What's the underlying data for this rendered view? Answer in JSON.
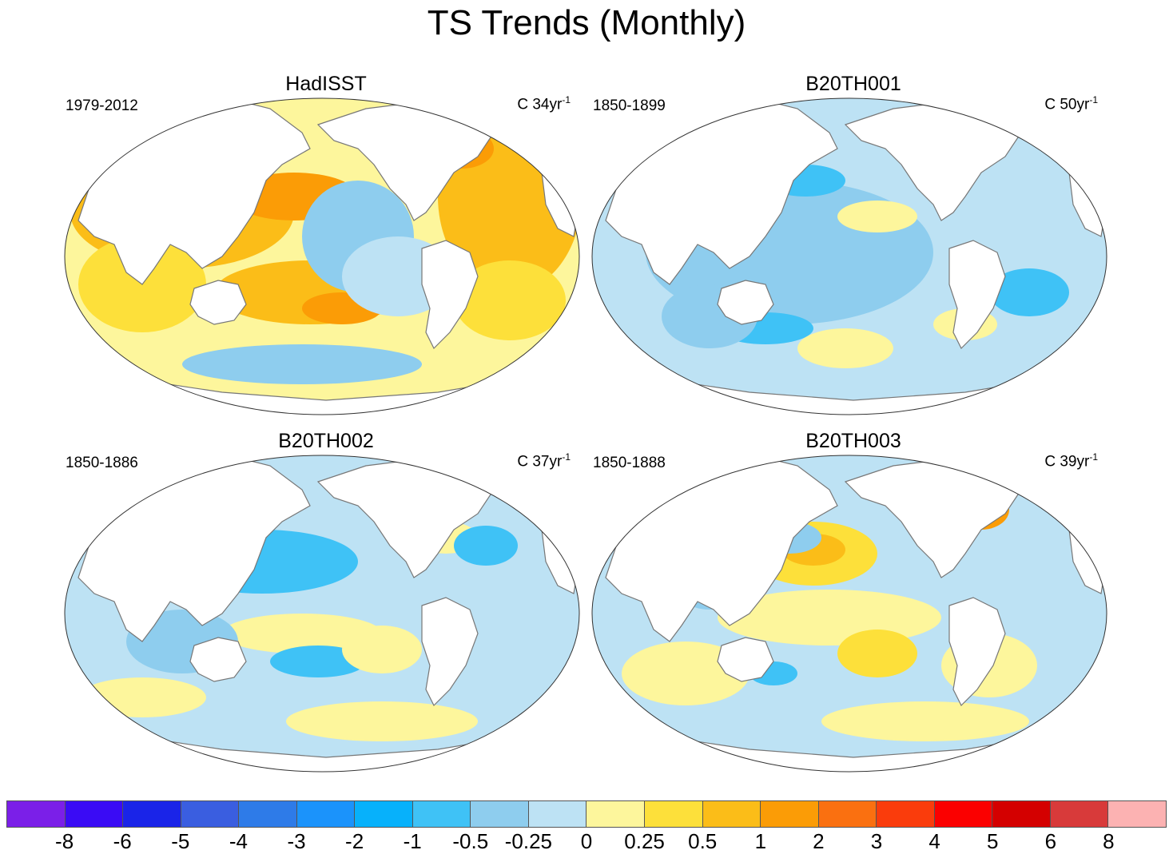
{
  "title": "TS Trends (Monthly)",
  "panels": [
    {
      "name": "HadISST",
      "period": "1979-2012",
      "units_prefix": "C 34yr",
      "units_exp": "-1"
    },
    {
      "name": "B20TH001",
      "period": "1850-1899",
      "units_prefix": "C 50yr",
      "units_exp": "-1"
    },
    {
      "name": "B20TH002",
      "period": "1850-1886",
      "units_prefix": "C 37yr",
      "units_exp": "-1"
    },
    {
      "name": "B20TH003",
      "period": "1850-1888",
      "units_prefix": "C 39yr",
      "units_exp": "-1"
    }
  ],
  "colorbar": {
    "colors": [
      "#7b1fe8",
      "#3a0bf5",
      "#1a24e8",
      "#3a5ee0",
      "#2e7be8",
      "#1b93fb",
      "#07b1fb",
      "#3fc2f6",
      "#8ecdee",
      "#bde2f4",
      "#fdf69c",
      "#fde03a",
      "#fbbd18",
      "#fb9c06",
      "#fa7010",
      "#fa3c0c",
      "#fb0000",
      "#d40000",
      "#d83a3a",
      "#fcb2b2"
    ],
    "labels": [
      "-8",
      "-6",
      "-5",
      "-4",
      "-3",
      "-2",
      "-1",
      "-0.5",
      "-0.25",
      "0",
      "0.25",
      "0.5",
      "1",
      "2",
      "3",
      "4",
      "5",
      "6",
      "8"
    ]
  }
}
